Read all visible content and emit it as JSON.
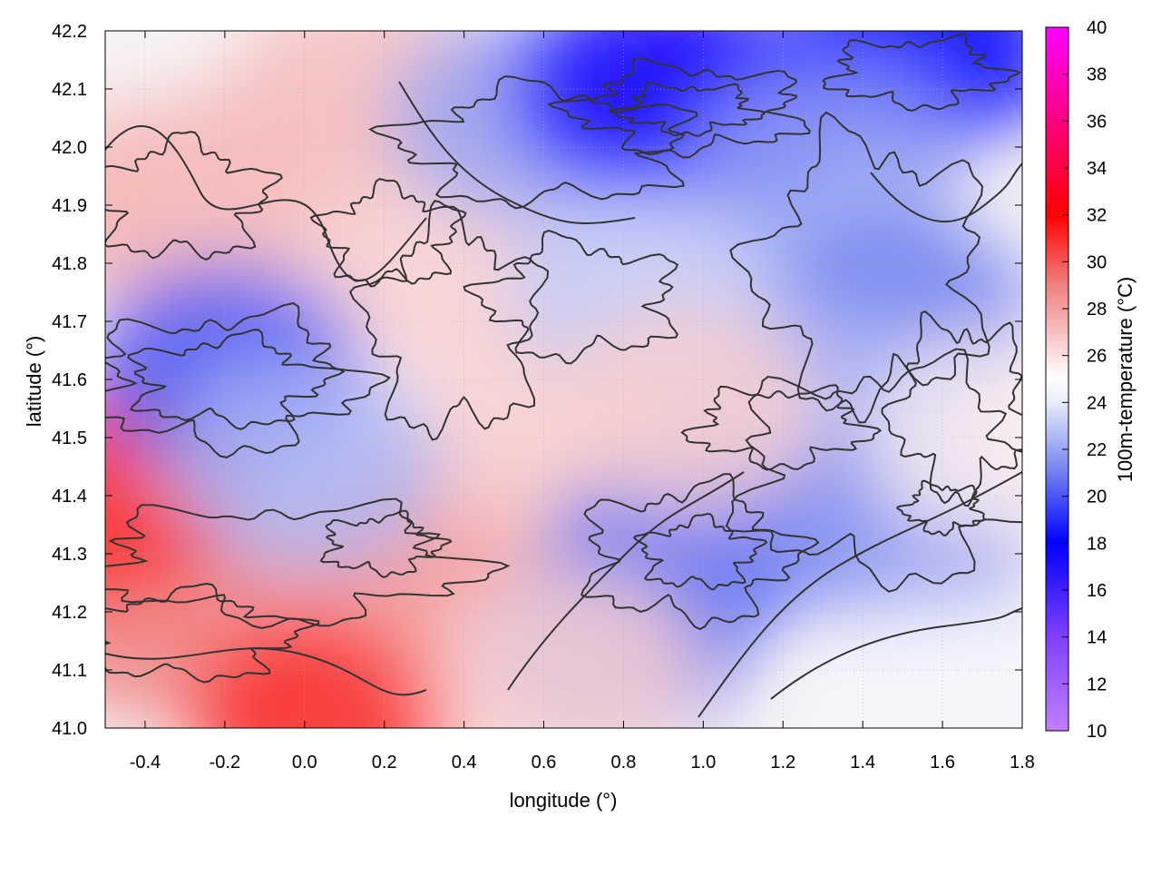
{
  "chart_data": {
    "type": "heatmap",
    "title": "",
    "xlabel": "longitude (°)",
    "ylabel": "latitude (°)",
    "xlim": [
      -0.5,
      1.8
    ],
    "ylim": [
      41.0,
      42.2
    ],
    "x_ticks": [
      "-0.4",
      "-0.2",
      "0.0",
      "0.2",
      "0.4",
      "0.6",
      "0.8",
      "1.0",
      "1.2",
      "1.4",
      "1.6",
      "1.8"
    ],
    "x_tick_values": [
      -0.4,
      -0.2,
      0.0,
      0.2,
      0.4,
      0.6,
      0.8,
      1.0,
      1.2,
      1.4,
      1.6,
      1.8
    ],
    "y_ticks": [
      "41.0",
      "41.1",
      "41.2",
      "41.3",
      "41.4",
      "41.5",
      "41.6",
      "41.7",
      "41.8",
      "41.9",
      "42.0",
      "42.1",
      "42.2"
    ],
    "y_tick_values": [
      41.0,
      41.1,
      41.2,
      41.3,
      41.4,
      41.5,
      41.6,
      41.7,
      41.8,
      41.9,
      42.0,
      42.1,
      42.2
    ],
    "grid": true,
    "overlay": "terrain contour lines",
    "colorbar": {
      "label": "100m-temperature (°C)",
      "range": [
        10,
        40
      ],
      "ticks": [
        "10",
        "12",
        "14",
        "16",
        "18",
        "20",
        "22",
        "24",
        "26",
        "28",
        "30",
        "32",
        "34",
        "36",
        "38",
        "40"
      ],
      "tick_values": [
        10,
        12,
        14,
        16,
        18,
        20,
        22,
        24,
        26,
        28,
        30,
        32,
        34,
        36,
        38,
        40
      ],
      "colormap": [
        {
          "value": 10,
          "color": "#c080ff"
        },
        {
          "value": 14,
          "color": "#8040ff"
        },
        {
          "value": 18,
          "color": "#0000ff"
        },
        {
          "value": 21,
          "color": "#7080f0"
        },
        {
          "value": 24,
          "color": "#e8ecfa"
        },
        {
          "value": 25,
          "color": "#ffffff"
        },
        {
          "value": 26,
          "color": "#fbe0e0"
        },
        {
          "value": 29,
          "color": "#f08080"
        },
        {
          "value": 32,
          "color": "#ff0000"
        },
        {
          "value": 36,
          "color": "#ff0080"
        },
        {
          "value": 40,
          "color": "#ff00ff"
        }
      ]
    },
    "regions": [
      {
        "lon": -0.35,
        "lat": 41.9,
        "temp": 27.5
      },
      {
        "lon": -0.1,
        "lat": 41.95,
        "temp": 27
      },
      {
        "lon": 0.15,
        "lat": 42.1,
        "temp": 27
      },
      {
        "lon": 0.3,
        "lat": 41.8,
        "temp": 26.5
      },
      {
        "lon": -0.4,
        "lat": 41.2,
        "temp": 29
      },
      {
        "lon": -0.1,
        "lat": 41.15,
        "temp": 28.5
      },
      {
        "lon": 0.2,
        "lat": 41.25,
        "temp": 28
      },
      {
        "lon": 0.05,
        "lat": 41.02,
        "temp": 31
      },
      {
        "lon": -0.48,
        "lat": 41.4,
        "temp": 31
      },
      {
        "lon": 0.35,
        "lat": 41.3,
        "temp": 28
      },
      {
        "lon": 0.6,
        "lat": 41.5,
        "temp": 26.5
      },
      {
        "lon": -0.2,
        "lat": 41.62,
        "temp": 20
      },
      {
        "lon": 0.0,
        "lat": 41.45,
        "temp": 22.5
      },
      {
        "lon": 0.55,
        "lat": 42.05,
        "temp": 22
      },
      {
        "lon": 0.85,
        "lat": 42.1,
        "temp": 17
      },
      {
        "lon": 1.05,
        "lat": 42.07,
        "temp": 17
      },
      {
        "lon": 1.55,
        "lat": 42.17,
        "temp": 18
      },
      {
        "lon": 1.3,
        "lat": 41.95,
        "temp": 22
      },
      {
        "lon": 1.5,
        "lat": 41.7,
        "temp": 21
      },
      {
        "lon": 1.25,
        "lat": 41.55,
        "temp": 22.5
      },
      {
        "lon": 0.85,
        "lat": 41.75,
        "temp": 23
      },
      {
        "lon": 0.95,
        "lat": 41.3,
        "temp": 20.5
      },
      {
        "lon": 0.78,
        "lat": 41.15,
        "temp": 21
      },
      {
        "lon": 1.5,
        "lat": 41.35,
        "temp": 21.5
      },
      {
        "lon": 1.6,
        "lat": 41.05,
        "temp": 24.5
      },
      {
        "lon": 0.95,
        "lat": 41.55,
        "temp": 26.5
      },
      {
        "lon": 0.65,
        "lat": 41.1,
        "temp": 26.5
      },
      {
        "lon": 1.75,
        "lat": 41.5,
        "temp": 25.5
      }
    ]
  }
}
